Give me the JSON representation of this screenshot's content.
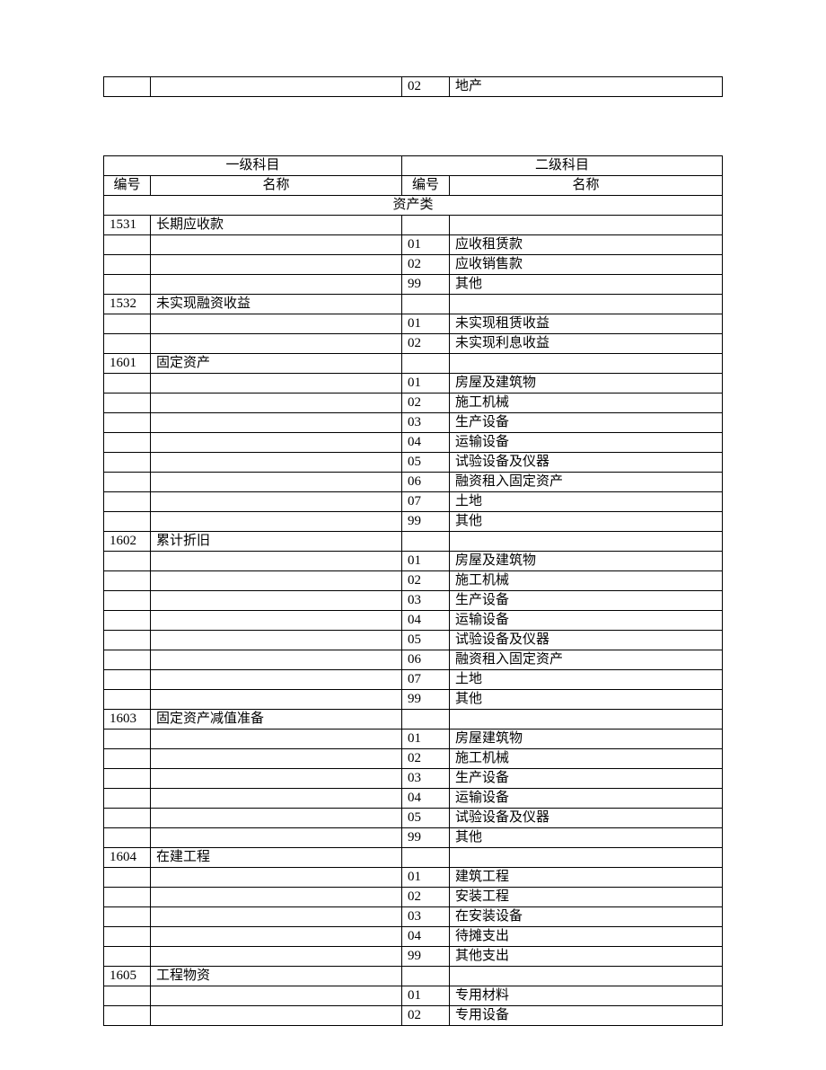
{
  "top_row": {
    "sub_code": "02",
    "sub_name": "地产"
  },
  "headers": {
    "level1": "一级科目",
    "level2": "二级科目",
    "code": "编号",
    "name": "名称"
  },
  "section_title": "资产类",
  "accounts": [
    {
      "code": "1531",
      "name": "长期应收款",
      "subs": [
        {
          "c": "01",
          "n": "应收租赁款"
        },
        {
          "c": "02",
          "n": "应收销售款"
        },
        {
          "c": "99",
          "n": "其他"
        }
      ]
    },
    {
      "code": "1532",
      "name": "未实现融资收益",
      "subs": [
        {
          "c": "01",
          "n": "未实现租赁收益"
        },
        {
          "c": "02",
          "n": "未实现利息收益"
        }
      ]
    },
    {
      "code": "1601",
      "name": "固定资产",
      "subs": [
        {
          "c": "01",
          "n": "房屋及建筑物"
        },
        {
          "c": "02",
          "n": "施工机械"
        },
        {
          "c": "03",
          "n": "生产设备"
        },
        {
          "c": "04",
          "n": "运输设备"
        },
        {
          "c": "05",
          "n": "试验设备及仪器"
        },
        {
          "c": "06",
          "n": "融资租入固定资产"
        },
        {
          "c": "07",
          "n": "土地"
        },
        {
          "c": "99",
          "n": "其他"
        }
      ]
    },
    {
      "code": "1602",
      "name": "累计折旧",
      "subs": [
        {
          "c": "01",
          "n": "房屋及建筑物"
        },
        {
          "c": "02",
          "n": "施工机械"
        },
        {
          "c": "03",
          "n": "生产设备"
        },
        {
          "c": "04",
          "n": "运输设备"
        },
        {
          "c": "05",
          "n": "试验设备及仪器"
        },
        {
          "c": "06",
          "n": "融资租入固定资产"
        },
        {
          "c": "07",
          "n": "土地"
        },
        {
          "c": "99",
          "n": "其他"
        }
      ]
    },
    {
      "code": "1603",
      "name": "固定资产减值准备",
      "subs": [
        {
          "c": "01",
          "n": "房屋建筑物"
        },
        {
          "c": "02",
          "n": "施工机械"
        },
        {
          "c": "03",
          "n": "生产设备"
        },
        {
          "c": "04",
          "n": "运输设备"
        },
        {
          "c": "05",
          "n": "试验设备及仪器"
        },
        {
          "c": "99",
          "n": "其他"
        }
      ]
    },
    {
      "code": "1604",
      "name": "在建工程",
      "subs": [
        {
          "c": "01",
          "n": "建筑工程"
        },
        {
          "c": "02",
          "n": "安装工程"
        },
        {
          "c": "03",
          "n": "在安装设备"
        },
        {
          "c": "04",
          "n": "待摊支出"
        },
        {
          "c": "99",
          "n": "其他支出"
        }
      ]
    },
    {
      "code": "1605",
      "name": "工程物资",
      "subs": [
        {
          "c": "01",
          "n": "专用材料"
        },
        {
          "c": "02",
          "n": "专用设备"
        }
      ]
    }
  ]
}
